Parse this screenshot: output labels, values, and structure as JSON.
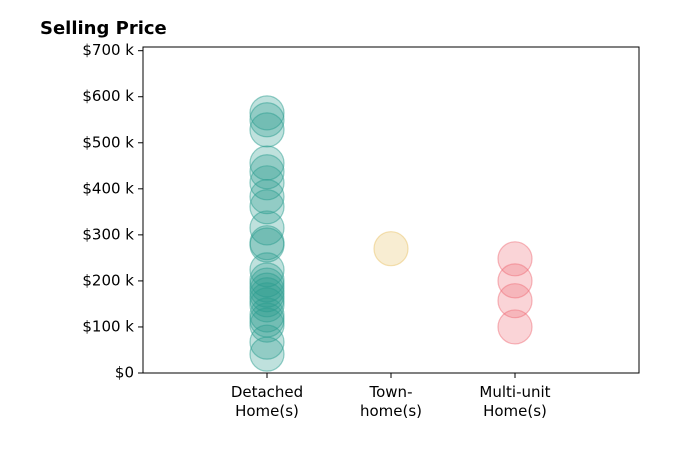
{
  "chart_data": {
    "type": "strip",
    "title": "Selling Price",
    "categories": [
      "Detached\nHome(s)",
      "Town-\nhome(s)",
      "Multi-unit\nHome(s)"
    ],
    "values": [
      [
        565000,
        550000,
        528000,
        456000,
        437000,
        413000,
        383000,
        361000,
        315000,
        283000,
        278000,
        224000,
        202000,
        191000,
        180000,
        170000,
        159000,
        148000,
        126000,
        115000,
        104000,
        67000,
        41000
      ],
      [
        270000
      ],
      [
        248000,
        200000,
        157000,
        100000
      ]
    ],
    "colors": [
      "#2a9d8f",
      "#e9c46a",
      "#ef6f7a"
    ],
    "alpha": 0.3,
    "ylim": [
      0,
      708000
    ],
    "yticks": [
      {
        "value": 0,
        "label": "$0"
      },
      {
        "value": 100000,
        "label": "$100 k"
      },
      {
        "value": 200000,
        "label": "$200 k"
      },
      {
        "value": 300000,
        "label": "$300 k"
      },
      {
        "value": 400000,
        "label": "$400 k"
      },
      {
        "value": 500000,
        "label": "$500 k"
      },
      {
        "value": 600000,
        "label": "$600 k"
      },
      {
        "value": 700000,
        "label": "$700 k"
      }
    ],
    "grid": false
  }
}
